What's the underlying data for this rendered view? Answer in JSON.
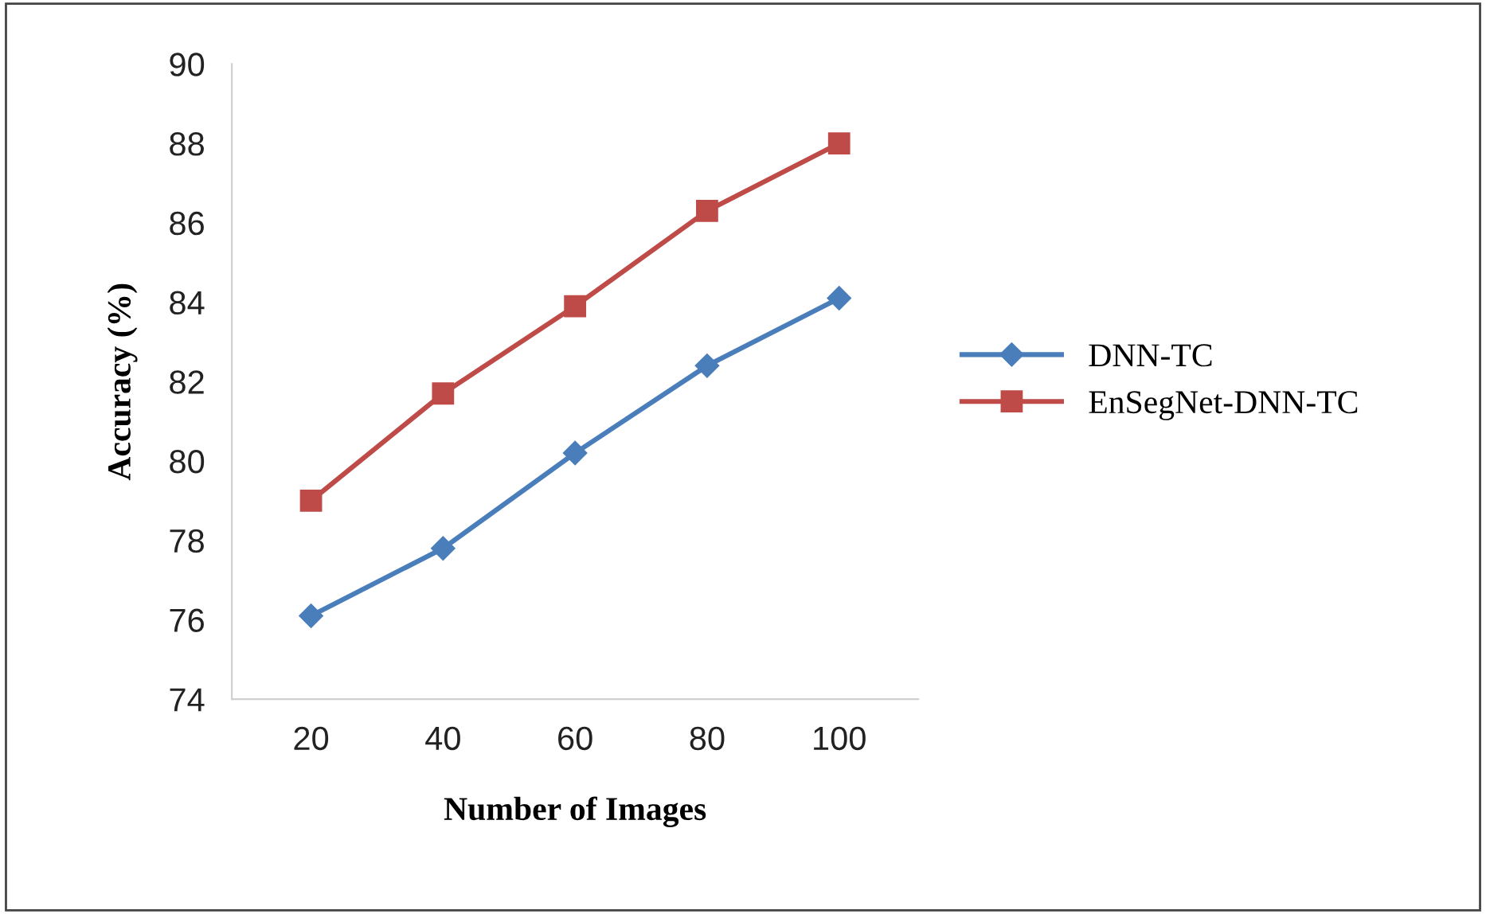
{
  "chart_data": {
    "type": "line",
    "xlabel": "Number of Images",
    "ylabel": "Accuracy (%)",
    "categories": [
      "20",
      "40",
      "60",
      "80",
      "100"
    ],
    "series": [
      {
        "name": "DNN-TC",
        "color": "#4a7ebb",
        "marker": "diamond",
        "values": [
          76.1,
          77.8,
          80.2,
          82.4,
          84.1
        ]
      },
      {
        "name": "EnSegNet-DNN-TC",
        "color": "#be4b48",
        "marker": "square",
        "values": [
          79.0,
          81.7,
          83.9,
          86.3,
          88.0
        ]
      }
    ],
    "ylim": [
      74,
      90
    ],
    "yticks": [
      74,
      76,
      78,
      80,
      82,
      84,
      86,
      88,
      90
    ],
    "grid": false,
    "legend": "right",
    "line_style": "solid"
  }
}
